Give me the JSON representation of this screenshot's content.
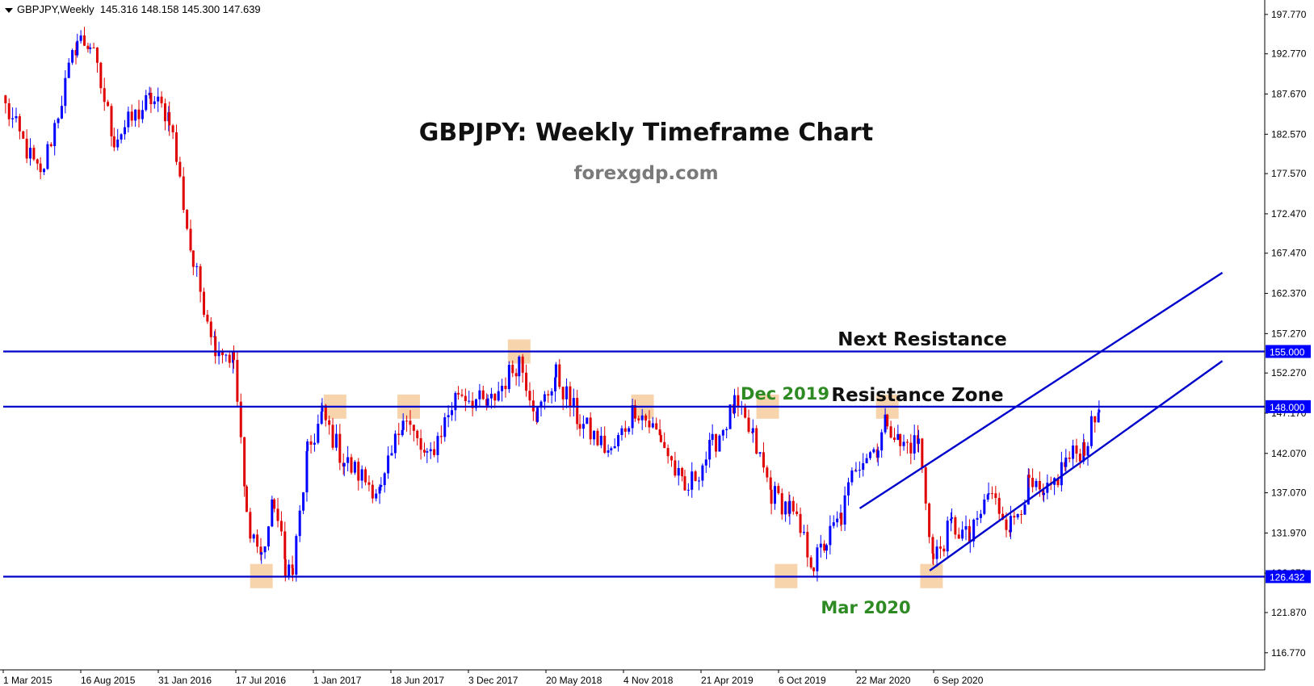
{
  "header": {
    "symbol": "GBPJPY,Weekly",
    "ohlc": "145.316 148.158 145.300 147.639"
  },
  "chart_data": {
    "type": "candlestick",
    "title": "GBPJPY: Weekly Timeframe Chart",
    "subtitle": "forexgdp.com",
    "ylim": [
      114.6,
      199.6
    ],
    "y_ticks": [
      "197.770",
      "192.770",
      "187.670",
      "182.570",
      "177.570",
      "172.470",
      "167.470",
      "162.370",
      "157.270",
      "152.270",
      "147.170",
      "142.070",
      "137.070",
      "131.970",
      "126.870",
      "121.870",
      "116.770"
    ],
    "x_ticks": [
      "1 Mar 2015",
      "16 Aug 2015",
      "31 Jan 2016",
      "17 Jul 2016",
      "1 Jan 2017",
      "18 Jun 2017",
      "3 Dec 2017",
      "20 May 2018",
      "4 Nov 2018",
      "21 Apr 2019",
      "6 Oct 2019",
      "22 Mar 2020",
      "6 Sep 2020"
    ],
    "horizontal_levels": [
      {
        "price": 155.0,
        "label": "155.000"
      },
      {
        "price": 148.0,
        "label": "148.000"
      },
      {
        "price": 126.432,
        "label": "126.432"
      }
    ],
    "annotations": {
      "next_resistance": "Next Resistance",
      "resistance_zone": "Resistance Zone",
      "dec_2019": "Dec 2019",
      "mar_2020": "Mar 2020"
    },
    "channel": {
      "upper": [
        [
          2019.8,
          135.1
        ],
        [
          2021.77,
          165.0
        ]
      ],
      "lower": [
        [
          2020.18,
          127.2
        ],
        [
          2021.77,
          153.8
        ]
      ]
    },
    "highlight_zones": [
      {
        "x": 2016.55,
        "price": 126.5
      },
      {
        "x": 2016.95,
        "price": 148.0
      },
      {
        "x": 2017.35,
        "price": 148.0
      },
      {
        "x": 2017.95,
        "price": 155.0
      },
      {
        "x": 2018.62,
        "price": 148.0
      },
      {
        "x": 2019.3,
        "price": 148.0
      },
      {
        "x": 2019.4,
        "price": 126.5
      },
      {
        "x": 2019.95,
        "price": 148.0
      },
      {
        "x": 2020.19,
        "price": 126.5
      }
    ],
    "colors": {
      "bull": "#0000ff",
      "bear": "#e00000",
      "level_line": "#0000cc",
      "channel_line": "#0000cc",
      "zone": "#f6c690",
      "green_label": "#2e8b23",
      "axis_tag": "#0000ff"
    },
    "series": [
      {
        "date": 2015.16,
        "close": 186.0
      },
      {
        "date": 2015.35,
        "close": 177.0
      },
      {
        "date": 2015.55,
        "close": 194.5
      },
      {
        "date": 2015.62,
        "close": 194.0
      },
      {
        "date": 2015.75,
        "close": 182.0
      },
      {
        "date": 2015.95,
        "close": 187.0
      },
      {
        "date": 2016.05,
        "close": 185.0
      },
      {
        "date": 2016.18,
        "close": 166.0
      },
      {
        "date": 2016.3,
        "close": 156.0
      },
      {
        "date": 2016.4,
        "close": 154.0
      },
      {
        "date": 2016.47,
        "close": 134.0
      },
      {
        "date": 2016.55,
        "close": 129.0
      },
      {
        "date": 2016.62,
        "close": 136.0
      },
      {
        "date": 2016.68,
        "close": 128.0
      },
      {
        "date": 2016.72,
        "close": 127.0
      },
      {
        "date": 2016.8,
        "close": 142.0
      },
      {
        "date": 2016.88,
        "close": 147.0
      },
      {
        "date": 2017.0,
        "close": 141.0
      },
      {
        "date": 2017.2,
        "close": 137.0
      },
      {
        "date": 2017.32,
        "close": 147.0
      },
      {
        "date": 2017.45,
        "close": 141.0
      },
      {
        "date": 2017.62,
        "close": 150.0
      },
      {
        "date": 2017.78,
        "close": 148.0
      },
      {
        "date": 2017.95,
        "close": 154.0
      },
      {
        "date": 2018.05,
        "close": 147.0
      },
      {
        "date": 2018.15,
        "close": 152.0
      },
      {
        "date": 2018.28,
        "close": 146.0
      },
      {
        "date": 2018.45,
        "close": 142.0
      },
      {
        "date": 2018.58,
        "close": 148.0
      },
      {
        "date": 2018.72,
        "close": 144.0
      },
      {
        "date": 2018.85,
        "close": 137.0
      },
      {
        "date": 2019.0,
        "close": 143.0
      },
      {
        "date": 2019.12,
        "close": 148.0
      },
      {
        "date": 2019.22,
        "close": 144.0
      },
      {
        "date": 2019.32,
        "close": 137.0
      },
      {
        "date": 2019.42,
        "close": 135.0
      },
      {
        "date": 2019.55,
        "close": 128.0
      },
      {
        "date": 2019.62,
        "close": 131.0
      },
      {
        "date": 2019.7,
        "close": 134.0
      },
      {
        "date": 2019.78,
        "close": 141.0
      },
      {
        "date": 2019.9,
        "close": 143.0
      },
      {
        "date": 2019.95,
        "close": 146.5
      },
      {
        "date": 2020.02,
        "close": 143.0
      },
      {
        "date": 2020.12,
        "close": 143.5
      },
      {
        "date": 2020.2,
        "close": 128.5
      },
      {
        "date": 2020.3,
        "close": 133.0
      },
      {
        "date": 2020.4,
        "close": 131.0
      },
      {
        "date": 2020.5,
        "close": 137.0
      },
      {
        "date": 2020.62,
        "close": 133.0
      },
      {
        "date": 2020.72,
        "close": 138.0
      },
      {
        "date": 2020.8,
        "close": 136.0
      },
      {
        "date": 2020.92,
        "close": 141.0
      },
      {
        "date": 2021.02,
        "close": 143.0
      },
      {
        "date": 2021.1,
        "close": 147.6
      }
    ]
  }
}
